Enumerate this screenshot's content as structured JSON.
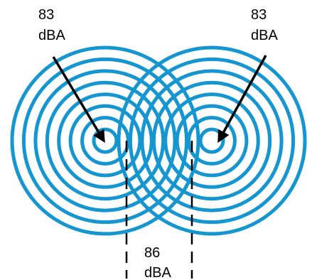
{
  "colors": {
    "rings": "#1596d0",
    "arrows": "#000000",
    "dashes": "#000000",
    "background": "#ffffff"
  },
  "sources": [
    {
      "level": "83",
      "unit": "dBA"
    },
    {
      "level": "83",
      "unit": "dBA"
    }
  ],
  "combined": {
    "level": "86",
    "unit": "dBA"
  },
  "ring_count": 8
}
